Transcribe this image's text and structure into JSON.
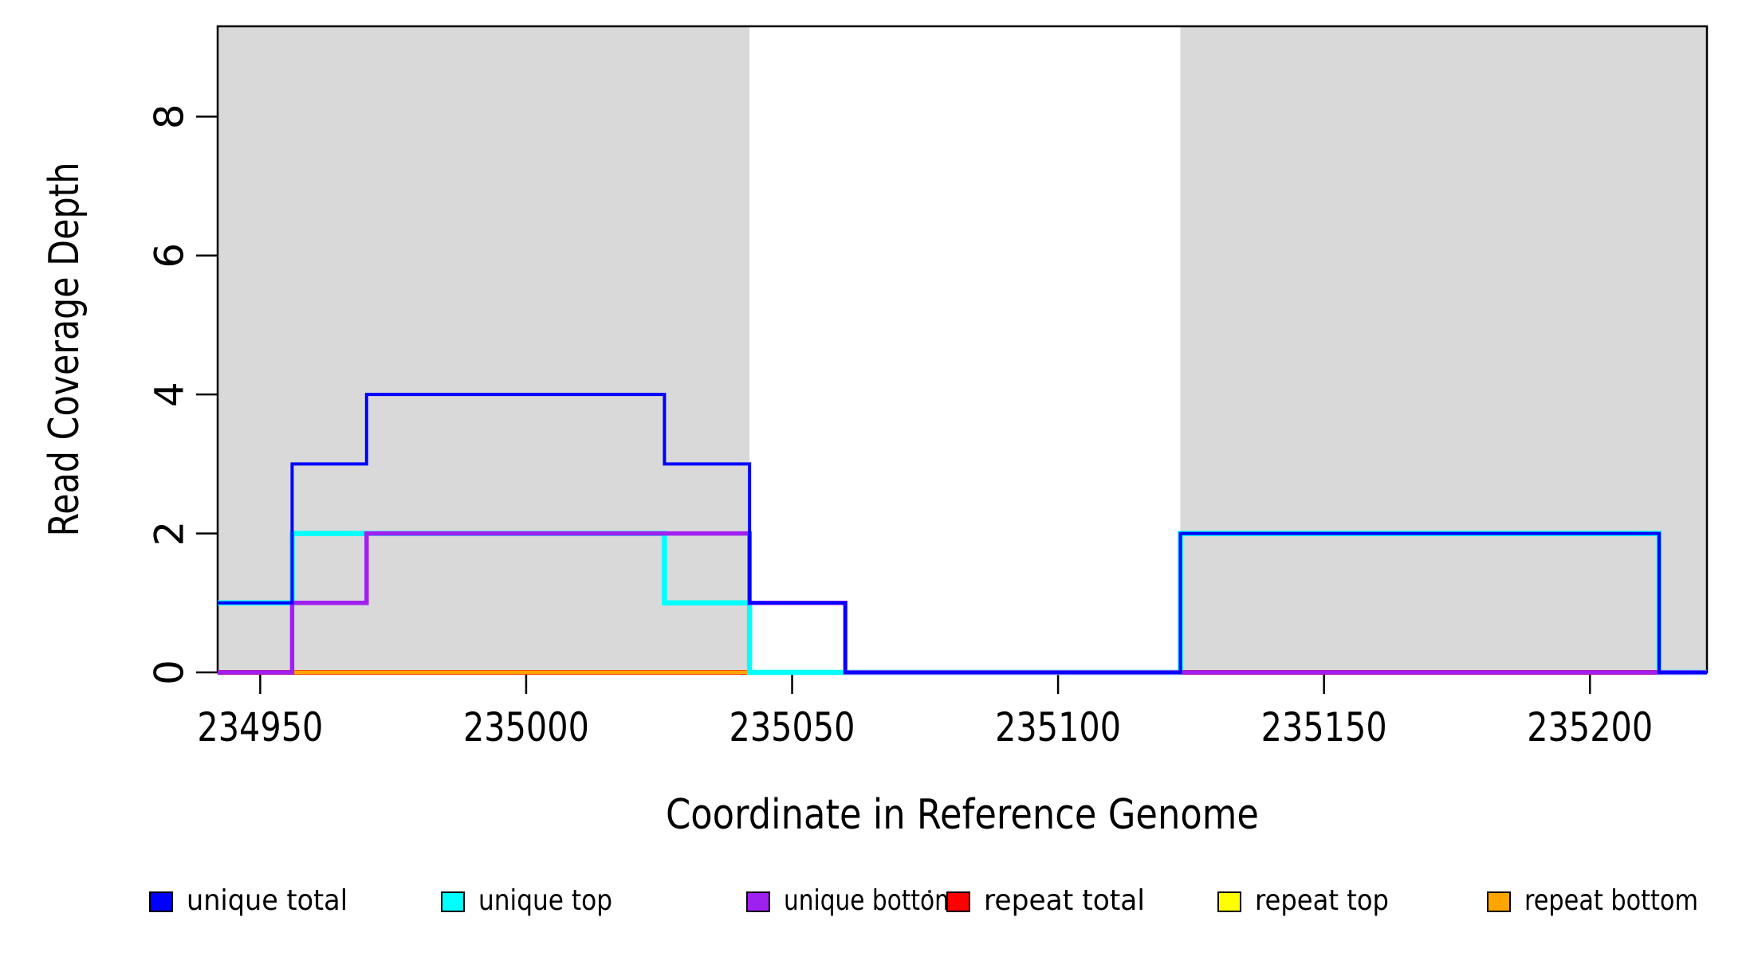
{
  "figure": {
    "background": "#FFFFFF",
    "plot_background": "#FFFFFF",
    "border_color": "#000000"
  },
  "chart_data": {
    "type": "line",
    "subtype": "step-coverage",
    "title": "",
    "xlabel": "Coordinate in Reference Genome",
    "ylabel": "Read Coverage Depth",
    "xlim": [
      234942,
      235222
    ],
    "ylim": [
      0,
      9.3
    ],
    "xticks": [
      234950,
      235000,
      235050,
      235100,
      235150,
      235200
    ],
    "yticks": [
      0,
      2,
      4,
      6,
      8
    ],
    "grid": false,
    "legend_position": "bottom",
    "repeat_region_fill": "#D9D9D9",
    "repeat_regions": [
      [
        234942,
        235042
      ],
      [
        235123,
        235222
      ]
    ],
    "breaks": [
      234942,
      234956,
      234970,
      235026,
      235042,
      235060,
      235123,
      235213,
      235222
    ],
    "series": [
      {
        "name": "unique total",
        "color": "#0000FF",
        "values": [
          1,
          3,
          4,
          3,
          1,
          0,
          2,
          0
        ]
      },
      {
        "name": "unique top",
        "color": "#00FFFF",
        "values": [
          1,
          2,
          2,
          1,
          0,
          0,
          2,
          0
        ]
      },
      {
        "name": "unique bottom",
        "color": "#A020F0",
        "values": [
          0,
          1,
          2,
          2,
          1,
          0,
          0,
          0
        ]
      },
      {
        "name": "repeat total",
        "color": "#FF0000",
        "flat_value": 0,
        "segments": [
          [
            234942,
            235042
          ],
          [
            235123,
            235222
          ]
        ]
      },
      {
        "name": "repeat top",
        "color": "#FFFF00",
        "flat_value": 0,
        "segments": [
          [
            234942,
            235042
          ],
          [
            235123,
            235222
          ]
        ]
      },
      {
        "name": "repeat bottom",
        "color": "#FFA500",
        "flat_value": 0,
        "segments": [
          [
            234942,
            235042
          ],
          [
            235123,
            235222
          ]
        ]
      }
    ],
    "legend": [
      {
        "label": "unique total",
        "color": "#0000FF"
      },
      {
        "label": "unique top",
        "color": "#00FFFF"
      },
      {
        "label": "unique bottom",
        "color": "#A020F0"
      },
      {
        "label": "repeat total",
        "color": "#FF0000"
      },
      {
        "label": "repeat top",
        "color": "#FFFF00"
      },
      {
        "label": "repeat bottom",
        "color": "#FFA500"
      }
    ]
  }
}
